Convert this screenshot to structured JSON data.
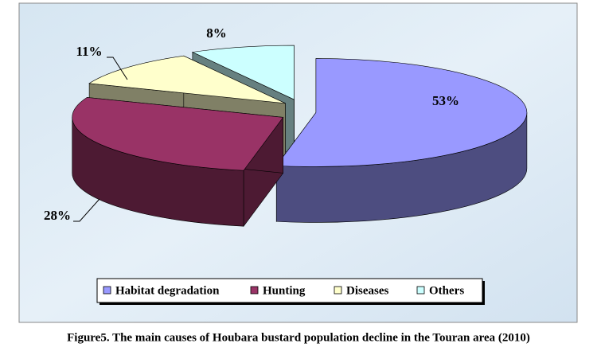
{
  "chart_data": {
    "type": "pie",
    "title": "Figure5. The main causes of Houbara bustard population decline in the Touran area (2010)",
    "categories": [
      "Habitat degradation",
      "Hunting",
      "Diseases",
      "Others"
    ],
    "values": [
      53,
      28,
      11,
      8
    ],
    "value_labels": [
      "53%",
      "28%",
      "11%",
      "8%"
    ],
    "colors": [
      "#9999ff",
      "#993366",
      "#ffffcc",
      "#ccffff"
    ],
    "legend": "bottom"
  }
}
